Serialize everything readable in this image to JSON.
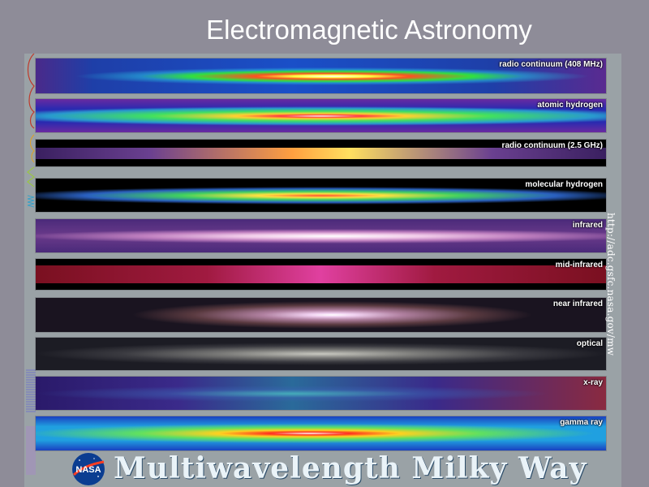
{
  "title": "Electromagnetic Astronomy",
  "bands": [
    {
      "label": "radio continuum (408 MHz)"
    },
    {
      "label": "atomic hydrogen"
    },
    {
      "label": "radio continuum (2.5 GHz)"
    },
    {
      "label": "molecular hydrogen"
    },
    {
      "label": "infrared"
    },
    {
      "label": "mid-infrared"
    },
    {
      "label": "near infrared"
    },
    {
      "label": "optical"
    },
    {
      "label": "x-ray"
    },
    {
      "label": "gamma ray"
    }
  ],
  "url": "http://adc.gsfc.nasa.gov/mw",
  "logo_text": "NASA",
  "footer_title": "Multiwavelength Milky Way"
}
